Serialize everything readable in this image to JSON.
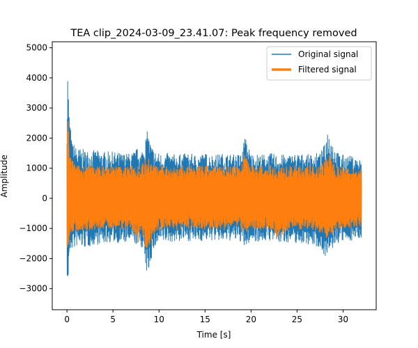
{
  "chart_data": {
    "type": "line",
    "title": "TEA clip_2024-03-09_23.41.07: Peak frequency removed",
    "xlabel": "Time [s]",
    "ylabel": "Amplitude",
    "xlim": [
      -1.6,
      33.6
    ],
    "ylim": [
      -3700,
      5200
    ],
    "x_ticks": [
      0,
      5,
      10,
      15,
      20,
      25,
      30
    ],
    "y_ticks": [
      -3000,
      -2000,
      -1000,
      0,
      1000,
      2000,
      3000,
      4000,
      5000
    ],
    "grid": false,
    "legend_position": "top-right",
    "x_range_data": [
      0,
      32
    ],
    "series": [
      {
        "name": "Original signal",
        "color": "#1f77b4",
        "envelope": {
          "x": [
            0,
            0.1,
            0.2,
            0.3,
            0.5,
            0.8,
            1.0,
            2.0,
            3.0,
            4.0,
            5.0,
            6.0,
            7.0,
            7.8,
            8.0,
            8.8,
            9.0,
            9.5,
            10.0,
            11.0,
            12.0,
            13.0,
            14.0,
            15.0,
            16.0,
            17.0,
            18.0,
            19.0,
            19.3,
            20.0,
            21.0,
            22.0,
            23.0,
            24.0,
            25.0,
            26.0,
            27.0,
            27.5,
            28.0,
            28.3,
            28.6,
            29.0,
            29.5,
            30.0,
            31.0,
            32.0
          ],
          "upper": [
            3300,
            4700,
            3000,
            2800,
            1900,
            1800,
            1700,
            1600,
            1600,
            1550,
            1550,
            1500,
            1500,
            1700,
            1500,
            2300,
            1900,
            1600,
            1500,
            1500,
            1450,
            1500,
            1450,
            1500,
            1450,
            1500,
            1450,
            1500,
            2100,
            1500,
            1450,
            1500,
            1450,
            1450,
            1500,
            1450,
            1500,
            1500,
            1800,
            2300,
            2200,
            1800,
            1500,
            1450,
            1400,
            1300
          ],
          "lower": [
            -2500,
            -3250,
            -2200,
            -1900,
            -1700,
            -1700,
            -1600,
            -1650,
            -1550,
            -1500,
            -1450,
            -1500,
            -1450,
            -1600,
            -1500,
            -2700,
            -2200,
            -1700,
            -1500,
            -1450,
            -1450,
            -1400,
            -1450,
            -1400,
            -1400,
            -1450,
            -1400,
            -1450,
            -1700,
            -1400,
            -1450,
            -1400,
            -1500,
            -1450,
            -1500,
            -1500,
            -1600,
            -1650,
            -1900,
            -2000,
            -1850,
            -1600,
            -1500,
            -1450,
            -1400,
            -1300
          ]
        }
      },
      {
        "name": "Filtered signal",
        "color": "#ff7f0e",
        "envelope": {
          "x": [
            0,
            0.1,
            0.2,
            0.3,
            0.5,
            0.8,
            1.0,
            2.0,
            3.0,
            4.0,
            5.0,
            6.0,
            7.0,
            7.8,
            8.0,
            8.8,
            9.0,
            9.5,
            10.0,
            11.0,
            12.0,
            13.0,
            14.0,
            15.0,
            16.0,
            17.0,
            18.0,
            19.0,
            19.3,
            20.0,
            21.0,
            22.0,
            23.0,
            24.0,
            25.0,
            26.0,
            27.0,
            27.5,
            28.0,
            28.3,
            28.6,
            29.0,
            29.5,
            30.0,
            31.0,
            32.0
          ],
          "upper": [
            2100,
            2950,
            2000,
            1600,
            1300,
            1200,
            1100,
            1100,
            1100,
            1050,
            1100,
            1050,
            1100,
            1150,
            1050,
            1500,
            1250,
            1100,
            1050,
            1100,
            1050,
            1100,
            1050,
            1100,
            1050,
            1100,
            1050,
            1100,
            1650,
            1100,
            1050,
            1100,
            1050,
            1050,
            1100,
            1050,
            1100,
            1100,
            1300,
            1550,
            1400,
            1200,
            1100,
            1050,
            1000,
            950
          ],
          "lower": [
            -1600,
            -2000,
            -1600,
            -1300,
            -1200,
            -1150,
            -1100,
            -1050,
            -1050,
            -1050,
            -1000,
            -1050,
            -1000,
            -1500,
            -1050,
            -1950,
            -1500,
            -1200,
            -1050,
            -1000,
            -1050,
            -1000,
            -1000,
            -1050,
            -1000,
            -1050,
            -1000,
            -1050,
            -1200,
            -1000,
            -1050,
            -1000,
            -1350,
            -1050,
            -1050,
            -1000,
            -1100,
            -1150,
            -1250,
            -1400,
            -1300,
            -1150,
            -1050,
            -1000,
            -1000,
            -950
          ]
        }
      }
    ]
  }
}
